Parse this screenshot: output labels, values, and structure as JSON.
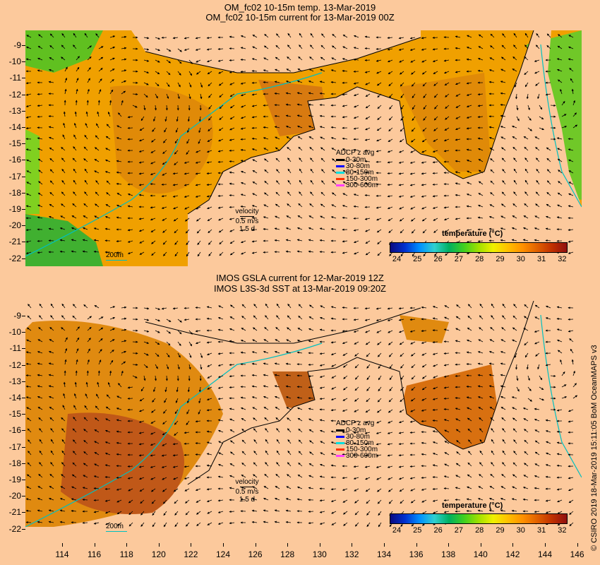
{
  "top": {
    "title_line1": "OM_fc02 10-15m temp. 13-Mar-2019",
    "title_line2": "OM_fc02 10-15m current for 13-Mar-2019 00Z",
    "legend_title": "temperature (°C)",
    "velocity_label": "velocity",
    "velocity_value": "0.5 m/s",
    "velocity_time": "1.5 d",
    "depth_label": "200m"
  },
  "bottom": {
    "title_line1": "IMOS GSLA current for 12-Mar-2019 12Z",
    "title_line2": "IMOS L3S-3d SST at 13-Mar-2019 09:20Z",
    "legend_title": "temperature (°C)",
    "velocity_label": "velocity",
    "velocity_value": "0.5 m/s",
    "velocity_time": "1.5 d",
    "depth_label": "200m"
  },
  "adcp": {
    "title": "ADCP z avg",
    "items": [
      {
        "label": "0-30m",
        "color": "#000000"
      },
      {
        "label": "30-80m",
        "color": "#0000ff"
      },
      {
        "label": "80-150m",
        "color": "#00e0e0"
      },
      {
        "label": "150-300m",
        "color": "#ff3000"
      },
      {
        "label": "300-600m",
        "color": "#ff40ff"
      }
    ]
  },
  "latitude_labels": [
    "-9",
    "-10",
    "-11",
    "-12",
    "-13",
    "-14",
    "-15",
    "-16",
    "-17",
    "-18",
    "-19",
    "-20",
    "-21",
    "-22"
  ],
  "longitude_labels": [
    "114",
    "116",
    "118",
    "120",
    "122",
    "124",
    "126",
    "128",
    "130",
    "132",
    "134",
    "136",
    "138",
    "140",
    "142",
    "144",
    "146"
  ],
  "colorbar_labels": [
    "24",
    "25",
    "26",
    "27",
    "28",
    "29",
    "30",
    "31",
    "32"
  ],
  "colorbar_colors": [
    "#0a0a80",
    "#0030d0",
    "#0090ff",
    "#30d0d0",
    "#00b060",
    "#40d020",
    "#a0e000",
    "#f0f000",
    "#ffc000",
    "#ff9000",
    "#e06000",
    "#c03000",
    "#901010"
  ],
  "credit": "© CSIRO 2019   18-Mar-2019 15:11:05 BoM OceanMAPS v3",
  "colors": {
    "land": "#fcc99c",
    "ocean_warm": "#f0a000",
    "ocean_hot": "#d07010",
    "ocean_cool": "#40c020",
    "isobath": "#00c0c0"
  }
}
